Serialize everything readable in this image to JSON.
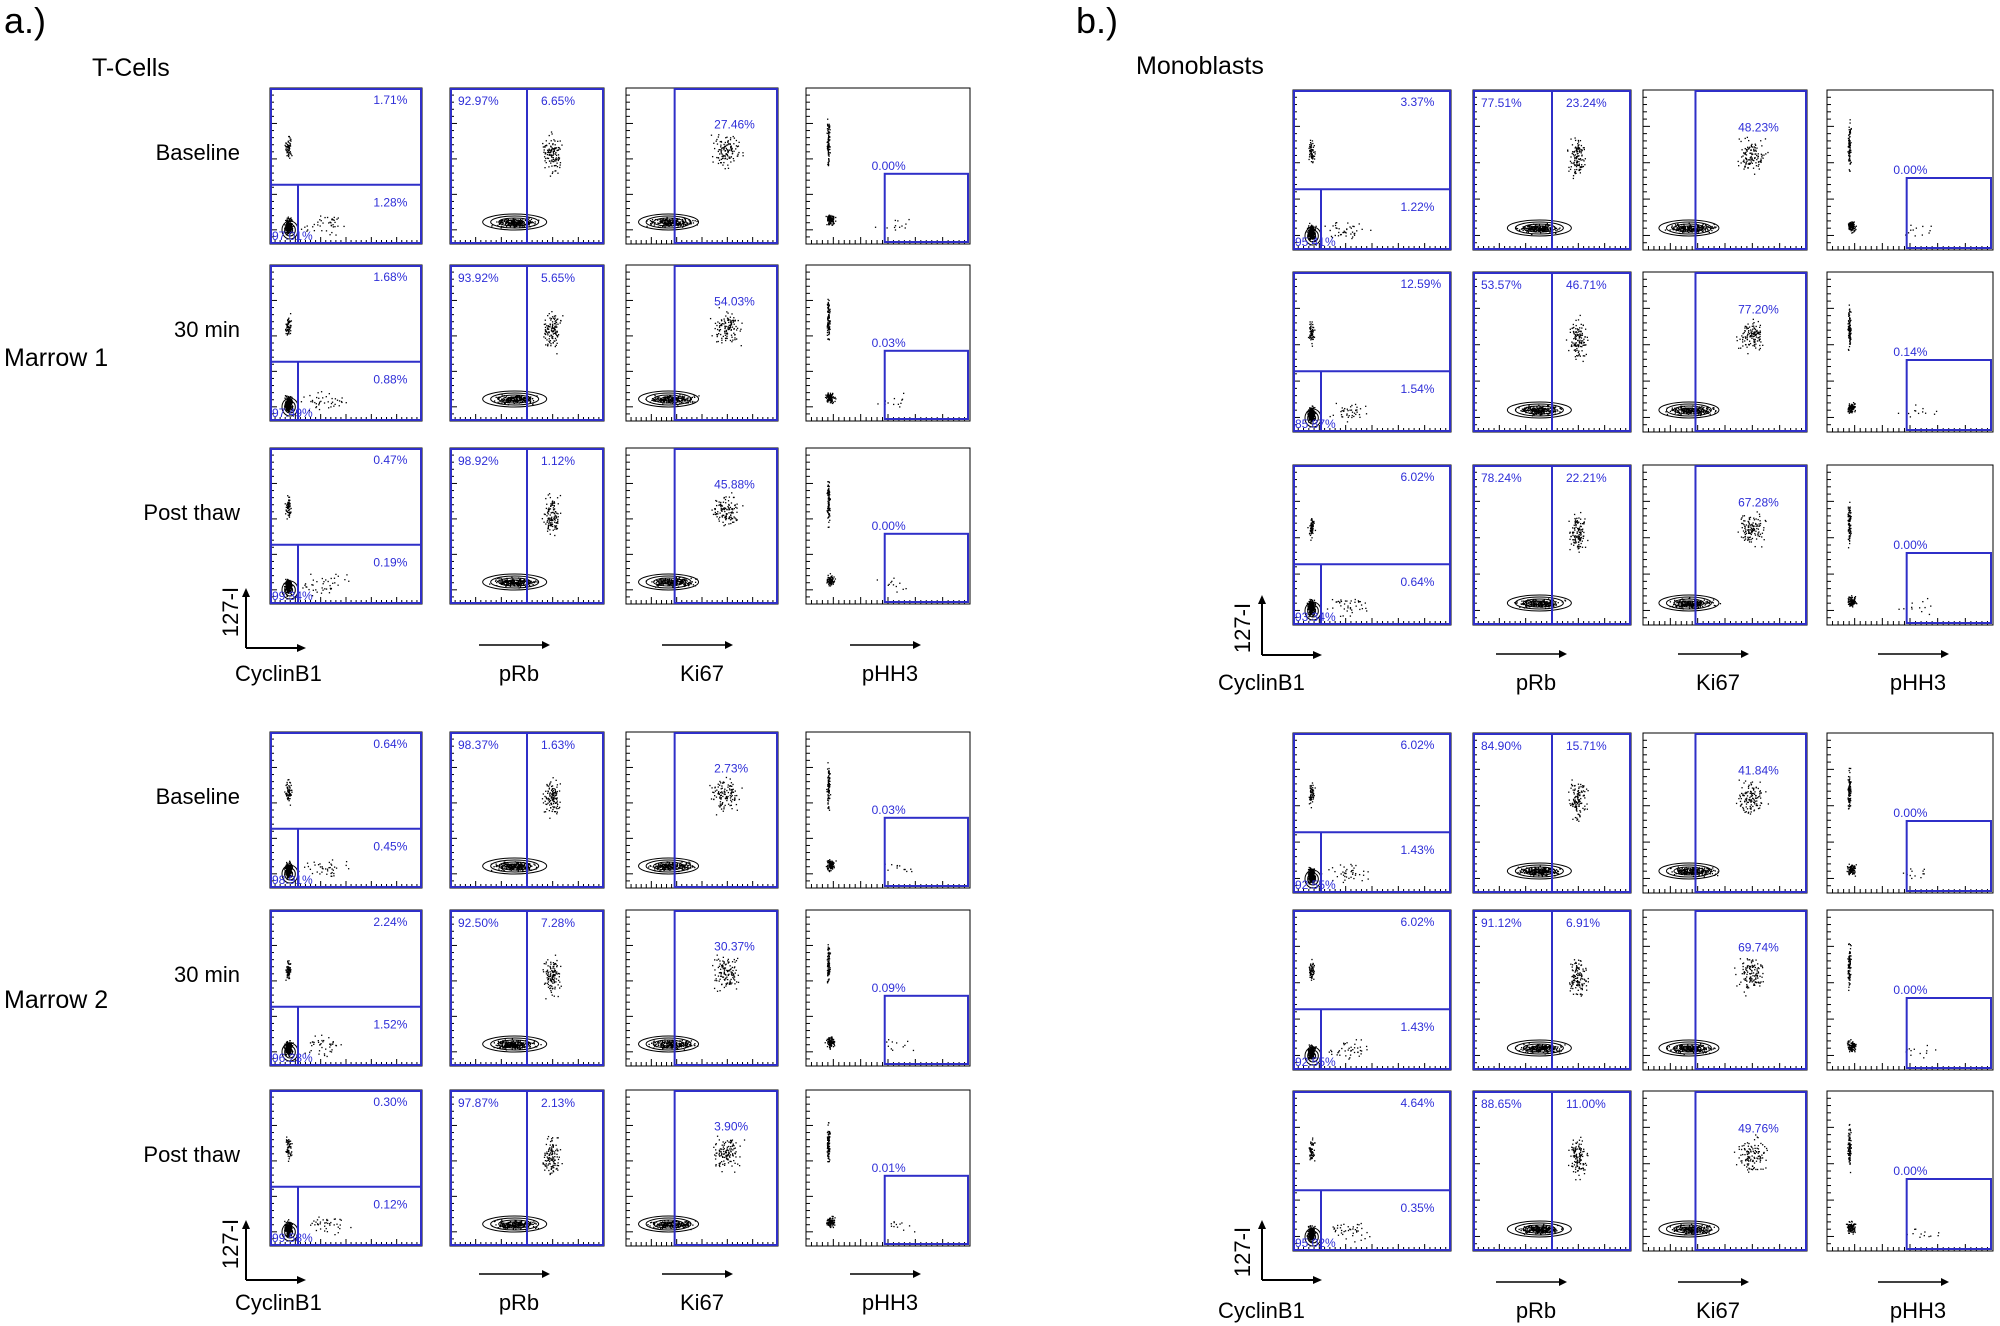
{
  "figure": {
    "markers": [
      "CyclinB1",
      "pRb",
      "Ki67",
      "pHH3"
    ],
    "y_axis_label": "127-I",
    "panels": [
      {
        "letter": "a.)",
        "title": "T-Cells",
        "groups": [
          {
            "name": "Marrow 1",
            "rows": [
              {
                "label": "Baseline",
                "plots": [
                  {
                    "type": "quadrant",
                    "upper": "1.71%",
                    "lower_right": "1.28%",
                    "lower_left": "97.01%"
                  },
                  {
                    "type": "split",
                    "left": "92.97%",
                    "right": "6.65%"
                  },
                  {
                    "type": "positive",
                    "value": "27.46%"
                  },
                  {
                    "type": "box",
                    "value": "0.00%"
                  }
                ]
              },
              {
                "label": "30 min",
                "plots": [
                  {
                    "type": "quadrant",
                    "upper": "1.68%",
                    "lower_right": "0.88%",
                    "lower_left": "97.49%"
                  },
                  {
                    "type": "split",
                    "left": "93.92%",
                    "right": "5.65%"
                  },
                  {
                    "type": "positive",
                    "value": "54.03%"
                  },
                  {
                    "type": "box",
                    "value": "0.03%"
                  }
                ]
              },
              {
                "label": "Post thaw",
                "plots": [
                  {
                    "type": "quadrant",
                    "upper": "0.47%",
                    "lower_right": "0.19%",
                    "lower_left": "99.34%"
                  },
                  {
                    "type": "split",
                    "left": "98.92%",
                    "right": "1.12%"
                  },
                  {
                    "type": "positive",
                    "value": "45.88%"
                  },
                  {
                    "type": "box",
                    "value": "0.00%"
                  }
                ]
              }
            ]
          },
          {
            "name": "Marrow 2",
            "rows": [
              {
                "label": "Baseline",
                "plots": [
                  {
                    "type": "quadrant",
                    "upper": "0.64%",
                    "lower_right": "0.45%",
                    "lower_left": "98.91%"
                  },
                  {
                    "type": "split",
                    "left": "98.37%",
                    "right": "1.63%"
                  },
                  {
                    "type": "positive",
                    "value": "2.73%"
                  },
                  {
                    "type": "box",
                    "value": "0.03%"
                  }
                ]
              },
              {
                "label": "30 min",
                "plots": [
                  {
                    "type": "quadrant",
                    "upper": "2.24%",
                    "lower_right": "1.52%",
                    "lower_left": "96.23%"
                  },
                  {
                    "type": "split",
                    "left": "92.50%",
                    "right": "7.28%"
                  },
                  {
                    "type": "positive",
                    "value": "30.37%"
                  },
                  {
                    "type": "box",
                    "value": "0.09%"
                  }
                ]
              },
              {
                "label": "Post thaw",
                "plots": [
                  {
                    "type": "quadrant",
                    "upper": "0.30%",
                    "lower_right": "0.12%",
                    "lower_left": "99.58%"
                  },
                  {
                    "type": "split",
                    "left": "97.87%",
                    "right": "2.13%"
                  },
                  {
                    "type": "positive",
                    "value": "3.90%"
                  },
                  {
                    "type": "box",
                    "value": "0.01%"
                  }
                ]
              }
            ]
          }
        ]
      },
      {
        "letter": "b.)",
        "title": "Monoblasts",
        "groups": [
          {
            "name": "",
            "rows": [
              {
                "label": "",
                "plots": [
                  {
                    "type": "quadrant",
                    "upper": "3.37%",
                    "lower_right": "1.22%",
                    "lower_left": "95.41%"
                  },
                  {
                    "type": "split",
                    "left": "77.51%",
                    "right": "23.24%"
                  },
                  {
                    "type": "positive",
                    "value": "48.23%"
                  },
                  {
                    "type": "box",
                    "value": "0.00%"
                  }
                ]
              },
              {
                "label": "",
                "plots": [
                  {
                    "type": "quadrant",
                    "upper": "12.59%",
                    "lower_right": "1.54%",
                    "lower_left": "85.87%"
                  },
                  {
                    "type": "split",
                    "left": "53.57%",
                    "right": "46.71%"
                  },
                  {
                    "type": "positive",
                    "value": "77.20%"
                  },
                  {
                    "type": "box",
                    "value": "0.14%"
                  }
                ]
              },
              {
                "label": "",
                "plots": [
                  {
                    "type": "quadrant",
                    "upper": "6.02%",
                    "lower_right": "0.64%",
                    "lower_left": "93.34%"
                  },
                  {
                    "type": "split",
                    "left": "78.24%",
                    "right": "22.21%"
                  },
                  {
                    "type": "positive",
                    "value": "67.28%"
                  },
                  {
                    "type": "box",
                    "value": "0.00%"
                  }
                ]
              }
            ]
          },
          {
            "name": "",
            "rows": [
              {
                "label": "",
                "plots": [
                  {
                    "type": "quadrant",
                    "upper": "6.02%",
                    "lower_right": "1.43%",
                    "lower_left": "92.55%"
                  },
                  {
                    "type": "split",
                    "left": "84.90%",
                    "right": "15.71%"
                  },
                  {
                    "type": "positive",
                    "value": "41.84%"
                  },
                  {
                    "type": "box",
                    "value": "0.00%"
                  }
                ]
              },
              {
                "label": "",
                "plots": [
                  {
                    "type": "quadrant",
                    "upper": "6.02%",
                    "lower_right": "1.43%",
                    "lower_left": "92.55%"
                  },
                  {
                    "type": "split",
                    "left": "91.12%",
                    "right": "6.91%"
                  },
                  {
                    "type": "positive",
                    "value": "69.74%"
                  },
                  {
                    "type": "box",
                    "value": "0.00%"
                  }
                ]
              },
              {
                "label": "",
                "plots": [
                  {
                    "type": "quadrant",
                    "upper": "4.64%",
                    "lower_right": "0.35%",
                    "lower_left": "95.02%"
                  },
                  {
                    "type": "split",
                    "left": "88.65%",
                    "right": "11.00%"
                  },
                  {
                    "type": "positive",
                    "value": "49.76%"
                  },
                  {
                    "type": "box",
                    "value": "0.00%"
                  }
                ]
              }
            ]
          }
        ]
      }
    ]
  },
  "colors": {
    "gate": "#2f2fc8",
    "percent_text": "#2e2ed8",
    "dots": "#000000",
    "frame": "#000000"
  },
  "chart_data": {
    "type": "scatter",
    "title": "",
    "description_of_axes": "",
    "x_axis_labels": [
      "CyclinB1",
      "pRb",
      "Ki67",
      "pHH3"
    ],
    "ylabel": "127-I",
    "grid": false,
    "legend": "none"
  }
}
